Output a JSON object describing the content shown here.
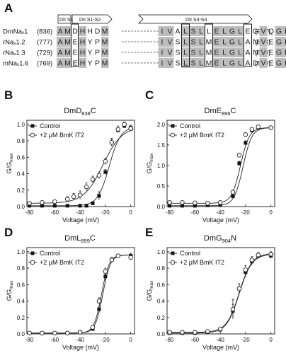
{
  "figure": {
    "panel_A": {
      "letter": "A",
      "domains": [
        "DII S1",
        "DII S1-S2",
        "DII S3-S4"
      ],
      "rows": [
        {
          "name": "DmNaᵥ1",
          "start": "(836)",
          "end": "(907)",
          "left": [
            "A",
            "M",
            "D",
            "H",
            "H",
            "D",
            "M"
          ],
          "right": [
            "I",
            "V",
            "A",
            "L",
            "S",
            "L",
            "L",
            "E",
            "L",
            "G",
            "L",
            "E",
            "G",
            "V",
            "Q",
            "G",
            "L",
            "S",
            "V"
          ]
        },
        {
          "name": "rNaᵥ1.2",
          "start": "(777)",
          "end": "(848)",
          "left": [
            "A",
            "M",
            "E",
            "H",
            "Y",
            "P",
            "M"
          ],
          "right": [
            "I",
            "V",
            "S",
            "L",
            "S",
            "L",
            "M",
            "E",
            "L",
            "G",
            "L",
            "A",
            "N",
            "V",
            "E",
            "G",
            "L",
            "S",
            "V"
          ]
        },
        {
          "name": "rNaᵥ1.3",
          "start": "(729)",
          "end": "(800)",
          "left": [
            "A",
            "M",
            "E",
            "H",
            "Y",
            "P",
            "M"
          ],
          "right": [
            "I",
            "V",
            "S",
            "L",
            "S",
            "L",
            "M",
            "E",
            "L",
            "G",
            "L",
            "A",
            "N",
            "V",
            "E",
            "G",
            "L",
            "S",
            "V"
          ]
        },
        {
          "name": "mNaᵥ1.6",
          "start": "(769)",
          "end": "(840)",
          "left": [
            "A",
            "M",
            "E",
            "H",
            "Y",
            "P",
            "M"
          ],
          "right": [
            "I",
            "V",
            "S",
            "L",
            "S",
            "L",
            "M",
            "E",
            "L",
            "G",
            "L",
            "A",
            "D",
            "V",
            "E",
            "G",
            "L",
            "S",
            "V"
          ]
        }
      ],
      "colors": {
        "shade": "#bdbdbd"
      }
    },
    "common": {
      "xlabel": "Voltage (mV)",
      "ylabel_main": "G/G",
      "ylabel_sub": "max",
      "legend_control": "Control",
      "legend_toxin": "+2 μM BmK IT2",
      "x_ticks": [
        "-80",
        "-60",
        "-40",
        "-20",
        "0"
      ]
    }
  },
  "chart_data": [
    {
      "panel": "B",
      "type": "scatter",
      "title_main": "DmD",
      "title_sub": "838",
      "title_suffix": "C",
      "xlabel": "Voltage (mV)",
      "ylabel": "G/Gmax",
      "xlim": [
        -82,
        3
      ],
      "ylim": [
        0,
        1.05
      ],
      "y_ticks": [
        "0.0",
        "0.2",
        "0.4",
        "0.6",
        "0.8",
        "1.0"
      ],
      "series": [
        {
          "name": "Control",
          "marker": "filled-square",
          "x": [
            -80,
            -70,
            -60,
            -50,
            -40,
            -35,
            -30,
            -25,
            -20,
            -15,
            -10,
            -5,
            0
          ],
          "y": [
            0.01,
            0.01,
            0.01,
            0.01,
            0.01,
            0.01,
            0.04,
            0.13,
            0.42,
            0.78,
            0.93,
            0.98,
            0.96
          ],
          "err": [
            0,
            0,
            0,
            0,
            0,
            0,
            0.02,
            0.05,
            0.03,
            0.04,
            0.03,
            0.02,
            0.03
          ],
          "fit": {
            "v_half": -17,
            "k": 4.5,
            "base": 0.01,
            "top": 0.97
          }
        },
        {
          "name": "+2 μM BmK IT2",
          "marker": "open-circle",
          "x": [
            -80,
            -70,
            -60,
            -50,
            -45,
            -40,
            -35,
            -30,
            -25,
            -20,
            -15,
            -10,
            -5,
            0
          ],
          "y": [
            0.04,
            0.05,
            0.06,
            0.09,
            0.12,
            0.14,
            0.24,
            0.33,
            0.38,
            0.55,
            0.78,
            0.94,
            1.0,
            0.95
          ],
          "err": [
            0.02,
            0.02,
            0.02,
            0.03,
            0.04,
            0.05,
            0.05,
            0.04,
            0.04,
            0.04,
            0.05,
            0.04,
            0.03,
            0.03
          ],
          "fit": {
            "v_half": -22,
            "k": 7.5,
            "base": 0.04,
            "top": 0.97
          }
        }
      ]
    },
    {
      "panel": "C",
      "type": "scatter",
      "title_main": "DmE",
      "title_sub": "896",
      "title_suffix": "C",
      "xlabel": "Voltage (mV)",
      "ylabel": "G/Gmax",
      "xlim": [
        -82,
        3
      ],
      "ylim": [
        0,
        2.1
      ],
      "y_ticks": [
        "0.0",
        "0.5",
        "1.0",
        "1.5",
        "2.0"
      ],
      "series": [
        {
          "name": "Control",
          "marker": "filled-square",
          "x": [
            -80,
            -70,
            -60,
            -50,
            -40,
            -30,
            -25,
            -20,
            -15,
            -10,
            0
          ],
          "y": [
            0.02,
            0.02,
            0.02,
            0.03,
            0.05,
            0.25,
            1.05,
            1.55,
            1.85,
            1.92,
            1.92
          ],
          "err": [
            0,
            0,
            0,
            0,
            0.02,
            0.04,
            0.05,
            0.05,
            0.04,
            0.03,
            0.03
          ],
          "fit": {
            "v_half": -22,
            "k": 3.5,
            "base": 0.02,
            "top": 1.92
          }
        },
        {
          "name": "+2 μM BmK IT2",
          "marker": "open-circle",
          "x": [
            -80,
            -70,
            -60,
            -50,
            -40,
            -30,
            -25,
            -20,
            -15,
            -10,
            0
          ],
          "y": [
            0.1,
            0.1,
            0.09,
            0.08,
            0.1,
            0.35,
            1.25,
            1.75,
            1.88,
            1.94,
            1.92
          ],
          "err": [
            0.03,
            0.03,
            0.02,
            0.02,
            0.03,
            0.05,
            0.05,
            0.05,
            0.04,
            0.03,
            0.03
          ],
          "fit": {
            "v_half": -24,
            "k": 3.5,
            "base": 0.08,
            "top": 1.92
          }
        }
      ]
    },
    {
      "panel": "D",
      "type": "scatter",
      "title_main": "DmL",
      "title_sub": "899",
      "title_suffix": "C",
      "xlabel": "Voltage (mV)",
      "ylabel": "G/Gmax",
      "xlim": [
        -82,
        3
      ],
      "ylim": [
        0,
        1.05
      ],
      "y_ticks": [
        "0.0",
        "0.2",
        "0.4",
        "0.6",
        "0.8",
        "1.0"
      ],
      "series": [
        {
          "name": "Control",
          "marker": "filled-square",
          "x": [
            -80,
            -70,
            -60,
            -50,
            -40,
            -30,
            -25,
            -20,
            -15,
            -10,
            0
          ],
          "y": [
            0.01,
            0.01,
            0.01,
            0.01,
            0.02,
            0.06,
            0.3,
            0.7,
            0.9,
            0.95,
            0.95
          ],
          "err": [
            0,
            0,
            0,
            0,
            0.01,
            0.02,
            0.04,
            0.04,
            0.03,
            0.02,
            0.03
          ],
          "fit": {
            "v_half": -22,
            "k": 3,
            "base": 0.01,
            "top": 0.96
          }
        },
        {
          "name": "+2 μM BmK IT2",
          "marker": "open-circle",
          "x": [
            -80,
            -70,
            -60,
            -50,
            -40,
            -30,
            -25,
            -20,
            -15,
            -10,
            0
          ],
          "y": [
            0.01,
            0.01,
            0.01,
            0.01,
            0.02,
            0.08,
            0.4,
            0.76,
            0.9,
            0.95,
            0.93
          ],
          "err": [
            0,
            0,
            0,
            0,
            0.01,
            0.02,
            0.04,
            0.04,
            0.03,
            0.02,
            0.03
          ],
          "fit": {
            "v_half": -23,
            "k": 3,
            "base": 0.01,
            "top": 0.96
          }
        }
      ]
    },
    {
      "panel": "E",
      "type": "scatter",
      "title_main": "DmG",
      "title_sub": "904",
      "title_suffix": "N",
      "xlabel": "Voltage (mV)",
      "ylabel": "G/Gmax",
      "xlim": [
        -82,
        3
      ],
      "ylim": [
        0,
        1.05
      ],
      "y_ticks": [
        "0.0",
        "0.2",
        "0.4",
        "0.6",
        "0.8",
        "1.0"
      ],
      "series": [
        {
          "name": "Control",
          "marker": "filled-square",
          "x": [
            -80,
            -70,
            -60,
            -50,
            -40,
            -30,
            -25,
            -20,
            -15,
            -10,
            0
          ],
          "y": [
            0.01,
            0.01,
            0.01,
            0.02,
            0.05,
            0.28,
            0.55,
            0.75,
            0.88,
            0.95,
            0.95
          ],
          "err": [
            0,
            0,
            0,
            0.01,
            0.02,
            0.08,
            0.06,
            0.05,
            0.04,
            0.03,
            0.03
          ],
          "fit": {
            "v_half": -25,
            "k": 5,
            "base": 0.01,
            "top": 0.97
          }
        },
        {
          "name": "+2 μM BmK IT2",
          "marker": "open-circle",
          "x": [
            -80,
            -70,
            -60,
            -50,
            -40,
            -30,
            -25,
            -20,
            -15,
            -10,
            0
          ],
          "y": [
            0.02,
            0.02,
            0.02,
            0.03,
            0.06,
            0.3,
            0.55,
            0.78,
            0.9,
            0.96,
            0.97
          ],
          "err": [
            0,
            0,
            0,
            0.01,
            0.02,
            0.12,
            0.06,
            0.05,
            0.04,
            0.03,
            0.03
          ],
          "fit": {
            "v_half": -25,
            "k": 5,
            "base": 0.02,
            "top": 0.98
          }
        }
      ]
    }
  ]
}
